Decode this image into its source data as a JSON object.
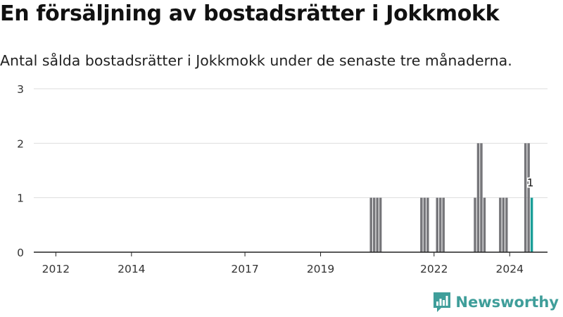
{
  "title": "En försäljning av bostadsrätter i Jokkmokk",
  "subtitle": "Antal sålda bostadsrätter i Jokkmokk under de senaste tre månaderna.",
  "brand": "Newsworthy",
  "colors": {
    "bar": "#76767a",
    "highlight": "#1a9e98",
    "brand": "#3f9e9a",
    "grid": "#dddddd",
    "axis": "#222222"
  },
  "chart_data": {
    "type": "bar",
    "x_unit": "month",
    "x_range": [
      "2011-06",
      "2025-01"
    ],
    "ylim": [
      0,
      3
    ],
    "y_ticks": [
      0,
      1,
      2,
      3
    ],
    "x_ticks": [
      "2012",
      "2014",
      "2017",
      "2019",
      "2022",
      "2024"
    ],
    "grid": true,
    "series": [
      {
        "values": [
          {
            "x": "2020-05",
            "y": 1
          },
          {
            "x": "2020-06",
            "y": 1
          },
          {
            "x": "2020-07",
            "y": 1
          },
          {
            "x": "2020-08",
            "y": 1
          },
          {
            "x": "2021-09",
            "y": 1
          },
          {
            "x": "2021-10",
            "y": 1
          },
          {
            "x": "2021-11",
            "y": 1
          },
          {
            "x": "2022-02",
            "y": 1
          },
          {
            "x": "2022-03",
            "y": 1
          },
          {
            "x": "2022-04",
            "y": 1
          },
          {
            "x": "2023-02",
            "y": 1
          },
          {
            "x": "2023-03",
            "y": 2
          },
          {
            "x": "2023-04",
            "y": 2
          },
          {
            "x": "2023-05",
            "y": 1
          },
          {
            "x": "2023-10",
            "y": 1
          },
          {
            "x": "2023-11",
            "y": 1
          },
          {
            "x": "2023-12",
            "y": 1
          },
          {
            "x": "2024-06",
            "y": 2
          },
          {
            "x": "2024-07",
            "y": 2
          },
          {
            "x": "2024-08",
            "y": 1
          }
        ]
      }
    ],
    "highlight": {
      "x": "2024-08",
      "y": 1,
      "label": "1"
    }
  }
}
